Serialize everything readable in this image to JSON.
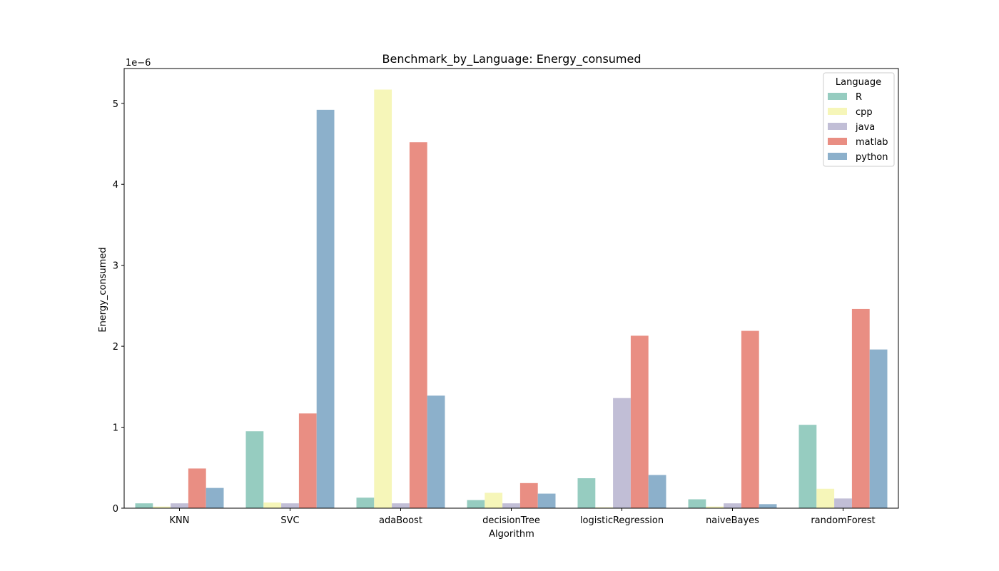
{
  "chart_data": {
    "type": "bar",
    "title": "Benchmark_by_Language: Energy_consumed",
    "xlabel": "Algorithm",
    "ylabel": "Energy_consumed",
    "offset_label": "1e−6",
    "ylim": [
      0,
      5.43
    ],
    "yticks": [
      "0",
      "1",
      "2",
      "3",
      "4",
      "5"
    ],
    "grid": false,
    "legend": {
      "title": "Language",
      "placement": "top-right"
    },
    "categories": [
      "KNN",
      "SVC",
      "adaBoost",
      "decisionTree",
      "logisticRegression",
      "naiveBayes",
      "randomForest"
    ],
    "series": [
      {
        "name": "R",
        "color": "#96ccc0",
        "values": [
          0.06,
          0.95,
          0.13,
          0.1,
          0.37,
          0.11,
          1.03
        ]
      },
      {
        "name": "cpp",
        "color": "#f6f6b9",
        "values": [
          0.02,
          0.07,
          5.17,
          0.19,
          0.01,
          0.02,
          0.24
        ]
      },
      {
        "name": "java",
        "color": "#c1bed6",
        "values": [
          0.06,
          0.06,
          0.06,
          0.06,
          1.36,
          0.06,
          0.12
        ]
      },
      {
        "name": "matlab",
        "color": "#e98e83",
        "values": [
          0.49,
          1.17,
          4.52,
          0.31,
          2.13,
          2.19,
          2.46
        ]
      },
      {
        "name": "python",
        "color": "#8cb0cb",
        "values": [
          0.25,
          4.92,
          1.39,
          0.18,
          0.41,
          0.05,
          1.96
        ]
      }
    ]
  }
}
